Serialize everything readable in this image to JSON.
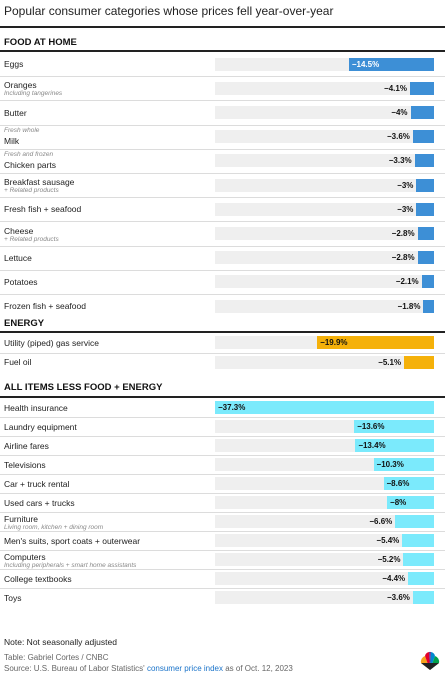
{
  "title": "Popular consumer categories whose prices fell year-over-year",
  "colors": {
    "food": "#3d8fd6",
    "energy": "#f5b10a",
    "other": "#7beafc",
    "track": "#efefef"
  },
  "chart_data": {
    "type": "bar",
    "title": "Popular consumer categories whose prices fell year-over-year",
    "xlim": [
      -37.3,
      0
    ],
    "sections": [
      {
        "name": "FOOD AT HOME",
        "color_key": "food",
        "rows": [
          {
            "label": "Eggs",
            "note": "",
            "note_pos": "",
            "value": -14.5,
            "display": "−14.5%"
          },
          {
            "label": "Oranges",
            "note": "Including tangerines",
            "note_pos": "below",
            "value": -4.1,
            "display": "−4.1%"
          },
          {
            "label": "Butter",
            "note": "",
            "note_pos": "",
            "value": -4.0,
            "display": "−4%"
          },
          {
            "label": "Milk",
            "note": "Fresh whole",
            "note_pos": "above",
            "value": -3.6,
            "display": "−3.6%"
          },
          {
            "label": "Chicken parts",
            "note": "Fresh and frozen",
            "note_pos": "above",
            "value": -3.3,
            "display": "−3.3%"
          },
          {
            "label": "Breakfast sausage",
            "note": "+ Related products",
            "note_pos": "below",
            "value": -3.0,
            "display": "−3%"
          },
          {
            "label": "Fresh fish + seafood",
            "note": "",
            "note_pos": "",
            "value": -3.0,
            "display": "−3%"
          },
          {
            "label": "Cheese",
            "note": "+ Related products",
            "note_pos": "below",
            "value": -2.8,
            "display": "−2.8%"
          },
          {
            "label": "Lettuce",
            "note": "",
            "note_pos": "",
            "value": -2.8,
            "display": "−2.8%"
          },
          {
            "label": "Potatoes",
            "note": "",
            "note_pos": "",
            "value": -2.1,
            "display": "−2.1%"
          },
          {
            "label": "Frozen fish + seafood",
            "note": "",
            "note_pos": "",
            "value": -1.8,
            "display": "−1.8%"
          }
        ]
      },
      {
        "name": "ENERGY",
        "color_key": "energy",
        "rows": [
          {
            "label": "Utility (piped) gas service",
            "note": "",
            "note_pos": "",
            "value": -19.9,
            "display": "−19.9%"
          },
          {
            "label": "Fuel oil",
            "note": "",
            "note_pos": "",
            "value": -5.1,
            "display": "−5.1%"
          }
        ]
      },
      {
        "name": "ALL ITEMS LESS FOOD + ENERGY",
        "color_key": "other",
        "rows": [
          {
            "label": "Health insurance",
            "note": "",
            "note_pos": "",
            "value": -37.3,
            "display": "−37.3%"
          },
          {
            "label": "Laundry equipment",
            "note": "",
            "note_pos": "",
            "value": -13.6,
            "display": "−13.6%"
          },
          {
            "label": "Airline fares",
            "note": "",
            "note_pos": "",
            "value": -13.4,
            "display": "−13.4%"
          },
          {
            "label": "Televisions",
            "note": "",
            "note_pos": "",
            "value": -10.3,
            "display": "−10.3%"
          },
          {
            "label": "Car + truck rental",
            "note": "",
            "note_pos": "",
            "value": -8.6,
            "display": "−8.6%"
          },
          {
            "label": "Used cars + trucks",
            "note": "",
            "note_pos": "",
            "value": -8.0,
            "display": "−8%"
          },
          {
            "label": "Furniture",
            "note": "Living room, kitchen + dining room",
            "note_pos": "below",
            "value": -6.6,
            "display": "−6.6%"
          },
          {
            "label": "Men's suits, sport coats + outerwear",
            "note": "",
            "note_pos": "",
            "value": -5.4,
            "display": "−5.4%"
          },
          {
            "label": "Computers",
            "note": "Including peripherals + smart home assistants",
            "note_pos": "below",
            "value": -5.2,
            "display": "−5.2%"
          },
          {
            "label": "College textbooks",
            "note": "",
            "note_pos": "",
            "value": -4.4,
            "display": "−4.4%"
          },
          {
            "label": "Toys",
            "note": "",
            "note_pos": "",
            "value": -3.6,
            "display": "−3.6%"
          }
        ]
      }
    ]
  },
  "footer": {
    "note": "Note: Not seasonally adjusted",
    "table_credit": "Table: Gabriel Cortes / CNBC",
    "source_prefix": "Source: U.S. Bureau of Labor Statistics'",
    "source_link": "consumer price index",
    "source_suffix": "as of Oct. 12, 2023"
  },
  "logo": "cnbc-peacock-logo"
}
